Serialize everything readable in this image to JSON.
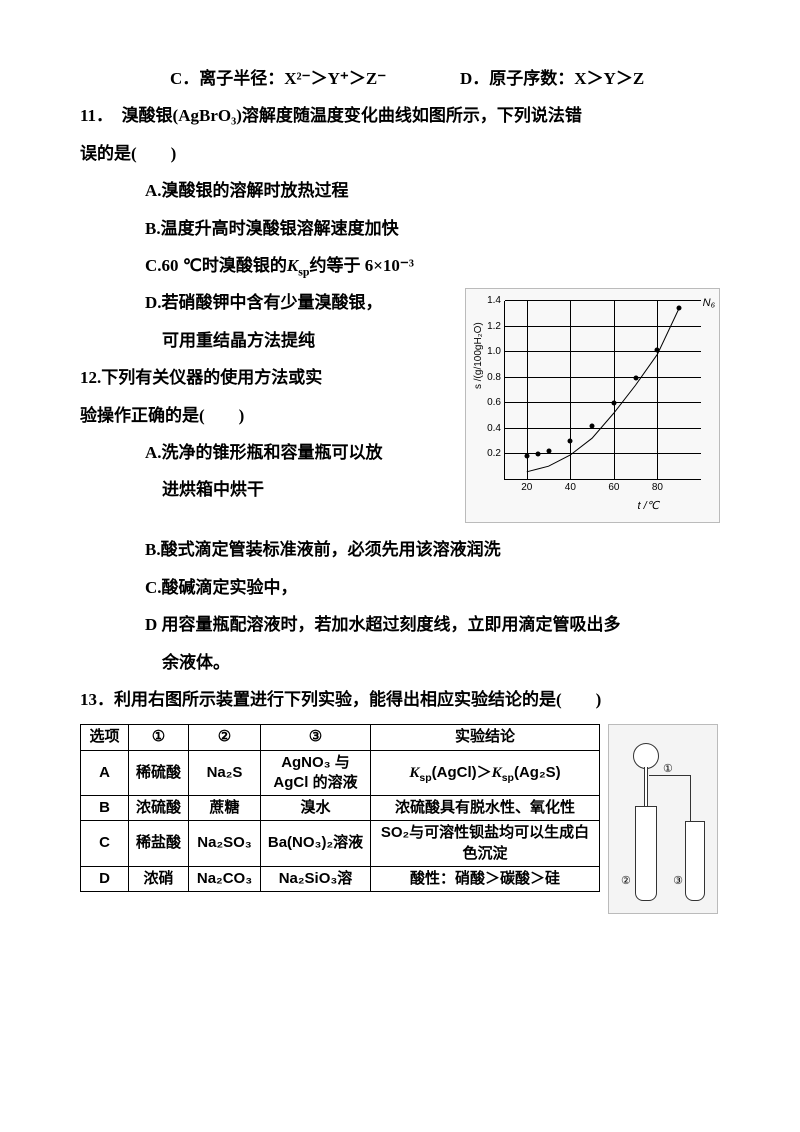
{
  "q10": {
    "c_label": "C．",
    "c_text": "离子半径：X²⁻＞Y⁺＞Z⁻",
    "d_label": "D．",
    "d_text": "原子序数：X＞Y＞Z"
  },
  "q11": {
    "num": "11．",
    "stem1": "溴酸银(AgBrO₃)溶解度随温度变化曲线如图所示，下列说法错",
    "stem2": "误的是(　　)",
    "a": "A.溴酸银的溶解时放热过程",
    "b": "B.温度升高时溴酸银溶解速度加快",
    "c_pre": "C.60 ℃时溴酸银的",
    "c_ksp": "K",
    "c_sp_sub": "sp",
    "c_post": "约等于 6×10⁻³",
    "d1": "D.若硝酸钾中含有少量溴酸银，",
    "d2": "可用重结晶方法提纯"
  },
  "q12": {
    "num": "12.",
    "stem1": "下列有关仪器的使用方法或实",
    "stem2": "验操作正确的是(　　)",
    "a1": "A.洗净的锥形瓶和容量瓶可以放",
    "a2": "进烘箱中烘干",
    "b": "B.酸式滴定管装标准液前，必须先用该溶液润洗",
    "c": "C.酸碱滴定实验中，",
    "d1": "D 用容量瓶配溶液时，若加水超过刻度线，立即用滴定管吸出多",
    "d2": "余液体。"
  },
  "q13": {
    "num": "13．",
    "stem": "利用右图所示装置进行下列实验，能得出相应实验结论的是(　　)",
    "headers": [
      "选项",
      "①",
      "②",
      "③",
      "实验结论"
    ],
    "rows": [
      {
        "opt": "A",
        "c1": "稀硫酸",
        "c2": "Na₂S",
        "c3": "AgNO₃ 与AgCl 的溶液",
        "c4_pre": "K",
        "c4_sp": "sp",
        "c4_mid": "(AgCl)＞",
        "c4_pre2": "K",
        "c4_sp2": "sp",
        "c4_post": "(Ag₂S)"
      },
      {
        "opt": "B",
        "c1": "浓硫酸",
        "c2": "蔗糖",
        "c3": "溴水",
        "c4": "浓硫酸具有脱水性、氧化性"
      },
      {
        "opt": "C",
        "c1": "稀盐酸",
        "c2": "Na₂SO₃",
        "c3": "Ba(NO₃)₂溶液",
        "c4": "SO₂与可溶性钡盐均可以生成白色沉淀"
      },
      {
        "opt": "D",
        "c1": "浓硝",
        "c2": "Na₂CO₃",
        "c3": "Na₂SiO₃溶",
        "c4": "酸性：硝酸＞碳酸＞硅"
      }
    ],
    "app_labels": {
      "l1": "①",
      "l2": "②",
      "l3": "③"
    }
  },
  "chart": {
    "nb_label": "N₆",
    "x_title": "t /℃",
    "y_title": "s /(g/100gH₂O)",
    "xticks": [
      20,
      40,
      60,
      80
    ],
    "yticks": [
      "0.2",
      "0.4",
      "0.6",
      "0.8",
      "1.0",
      "1.2",
      "1.4"
    ],
    "ymax": 1.4,
    "xmin": 10,
    "xmax": 100,
    "points": [
      {
        "x": 20,
        "y": 0.18
      },
      {
        "x": 25,
        "y": 0.2
      },
      {
        "x": 30,
        "y": 0.22
      },
      {
        "x": 40,
        "y": 0.3
      },
      {
        "x": 50,
        "y": 0.42
      },
      {
        "x": 60,
        "y": 0.6
      },
      {
        "x": 70,
        "y": 0.8
      },
      {
        "x": 80,
        "y": 1.02
      },
      {
        "x": 90,
        "y": 1.35
      }
    ],
    "grid_color": "#000"
  }
}
